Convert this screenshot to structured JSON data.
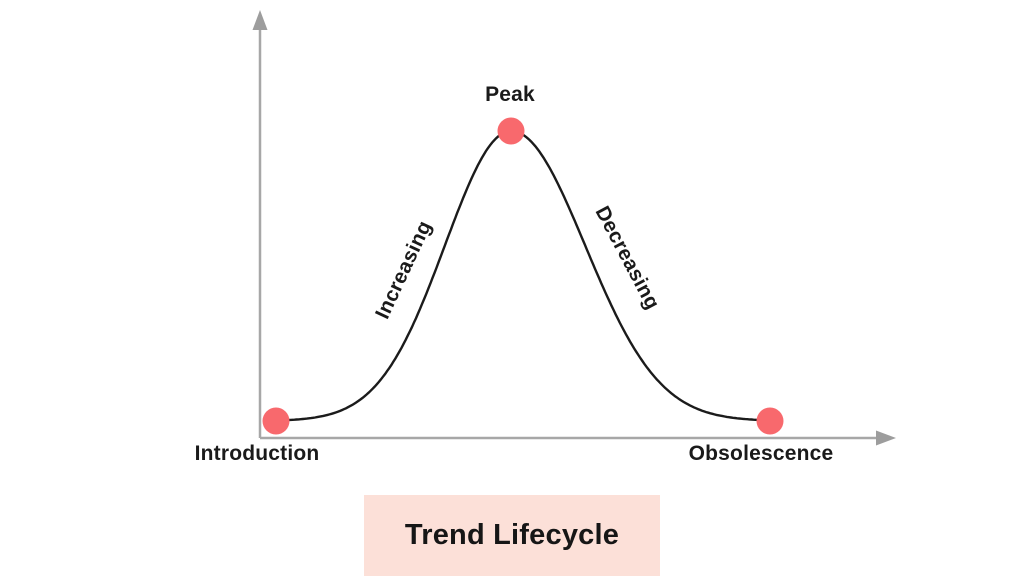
{
  "chart_data": {
    "type": "line",
    "title": "Trend Lifecycle",
    "xlabel": "",
    "ylabel": "",
    "grid": false,
    "legend": "none",
    "axes": {
      "x_visible": true,
      "y_visible": true,
      "ticks": "none",
      "arrowheads": true
    },
    "curve_shape": {
      "kind": "gaussian-bell",
      "center_nx": 0.4757,
      "sigma_left_nx": 0.1336,
      "sigma_right_nx": 0.1498
    },
    "points": [
      {
        "label": "Introduction",
        "x": 0,
        "y": 0
      },
      {
        "label": "Peak",
        "x": 0.4757,
        "y": 1
      },
      {
        "label": "Obsolescence",
        "x": 1,
        "y": 0
      }
    ],
    "phase_labels": [
      {
        "label": "Increasing",
        "segment": "rising-flank"
      },
      {
        "label": "Decreasing",
        "segment": "falling-flank"
      }
    ],
    "colors": {
      "point": "#f8696d",
      "curve": "#1b1b1b",
      "axis": "#a7a7a7",
      "axis_arrowhead": "#9d9d9d",
      "text": "#1a1a1a",
      "title_background": "#fce0d8"
    }
  }
}
